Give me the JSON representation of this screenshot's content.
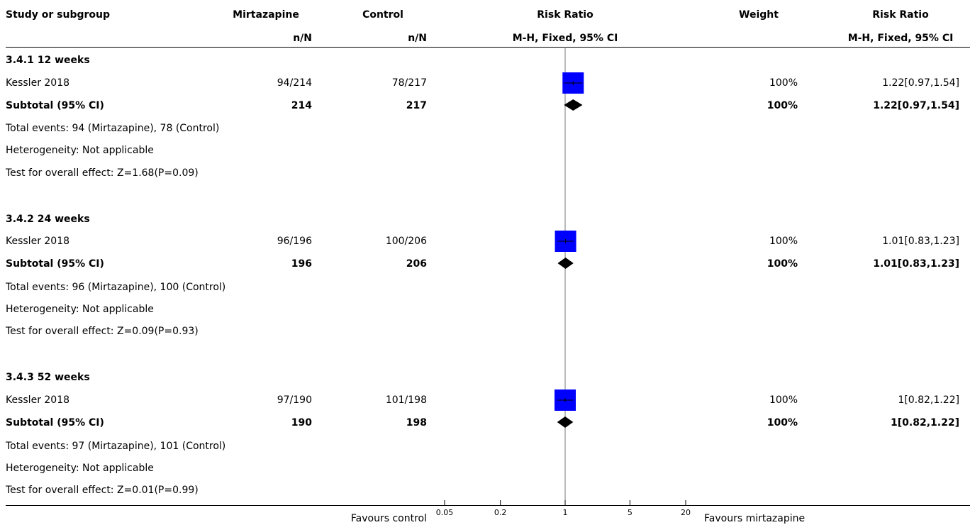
{
  "header": {
    "study_col": "Study or subgroup",
    "group1": "Mirtazapine",
    "group2": "Control",
    "group_sub": "n/N",
    "effect": "Risk Ratio",
    "effect_sub": "M-H, Fixed, 95% CI",
    "weight": "Weight",
    "effect2": "Risk Ratio",
    "effect2_sub": "M-H, Fixed, 95% CI"
  },
  "subgroups": [
    {
      "title": "3.4.1 12 weeks",
      "study": "Kessler 2018",
      "g1": "94/214",
      "g2": "78/217",
      "weight": "100%",
      "ci_text": "1.22[0.97,1.54]",
      "sub_label": "Subtotal (95% CI)",
      "sub_g1": "214",
      "sub_g2": "217",
      "sub_weight": "100%",
      "sub_ci_text": "1.22[0.97,1.54]",
      "events": "Total events: 94 (Mirtazapine), 78 (Control)",
      "heterogeneity": "Heterogeneity: Not applicable",
      "overall": "Test for overall effect: Z=1.68(P=0.09)"
    },
    {
      "title": "3.4.2 24 weeks",
      "study": "Kessler 2018",
      "g1": "96/196",
      "g2": "100/206",
      "weight": "100%",
      "ci_text": "1.01[0.83,1.23]",
      "sub_label": "Subtotal (95% CI)",
      "sub_g1": "196",
      "sub_g2": "206",
      "sub_weight": "100%",
      "sub_ci_text": "1.01[0.83,1.23]",
      "events": "Total events: 96 (Mirtazapine), 100 (Control)",
      "heterogeneity": "Heterogeneity: Not applicable",
      "overall": "Test for overall effect: Z=0.09(P=0.93)"
    },
    {
      "title": "3.4.3 52 weeks",
      "study": "Kessler 2018",
      "g1": "97/190",
      "g2": "101/198",
      "weight": "100%",
      "ci_text": "1[0.82,1.22]",
      "sub_label": "Subtotal (95% CI)",
      "sub_g1": "190",
      "sub_g2": "198",
      "sub_weight": "100%",
      "sub_ci_text": "1[0.82,1.22]",
      "events": "Total events: 97 (Mirtazapine), 101 (Control)",
      "heterogeneity": "Heterogeneity: Not applicable",
      "overall": "Test for overall effect: Z=0.01(P=0.99)"
    }
  ],
  "footer": {
    "favours_left": "Favours control",
    "favours_right": "Favours mirtazapine"
  },
  "chart_data": {
    "type": "forest",
    "scale": "log",
    "xlim": [
      0.05,
      20
    ],
    "ticks": [
      0.05,
      0.2,
      1,
      5,
      20
    ],
    "tick_labels": [
      "0.05",
      "0.2",
      "1",
      "5",
      "20"
    ],
    "null_value": 1,
    "square_color": "#0000ff",
    "studies": [
      {
        "group": "3.4.1 12 weeks",
        "name": "Kessler 2018",
        "rr": 1.22,
        "lo": 0.97,
        "hi": 1.54,
        "weight": 100
      },
      {
        "group": "3.4.2 24 weeks",
        "name": "Kessler 2018",
        "rr": 1.01,
        "lo": 0.83,
        "hi": 1.23,
        "weight": 100
      },
      {
        "group": "3.4.3 52 weeks",
        "name": "Kessler 2018",
        "rr": 1.0,
        "lo": 0.82,
        "hi": 1.22,
        "weight": 100
      }
    ],
    "subtotals": [
      {
        "group": "3.4.1 12 weeks",
        "rr": 1.22,
        "lo": 0.97,
        "hi": 1.54
      },
      {
        "group": "3.4.2 24 weeks",
        "rr": 1.01,
        "lo": 0.83,
        "hi": 1.23
      },
      {
        "group": "3.4.3 52 weeks",
        "rr": 1.0,
        "lo": 0.82,
        "hi": 1.22
      }
    ]
  }
}
